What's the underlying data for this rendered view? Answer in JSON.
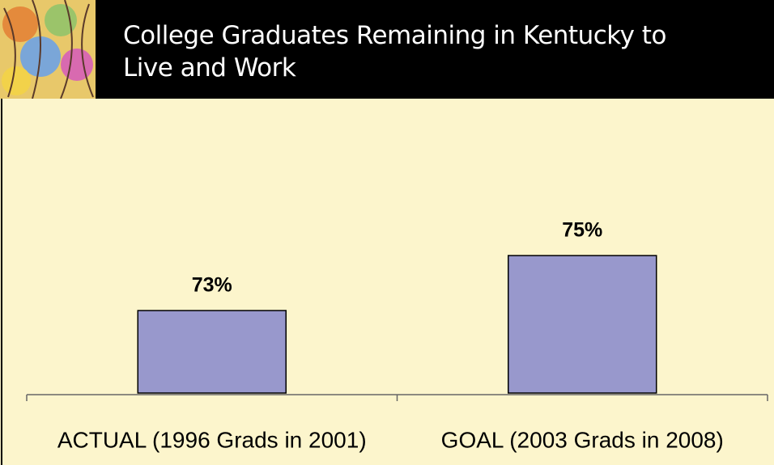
{
  "chart_data": {
    "type": "bar",
    "title": "College Graduates Remaining in Kentucky to Live and Work",
    "categories": [
      "ACTUAL (1996 Grads in 2001)",
      "GOAL (2003 Grads in 2008)"
    ],
    "values": [
      73,
      75
    ],
    "value_labels": [
      "73%",
      "75%"
    ],
    "color": "#9898cc",
    "ylim": [
      70,
      80
    ]
  }
}
